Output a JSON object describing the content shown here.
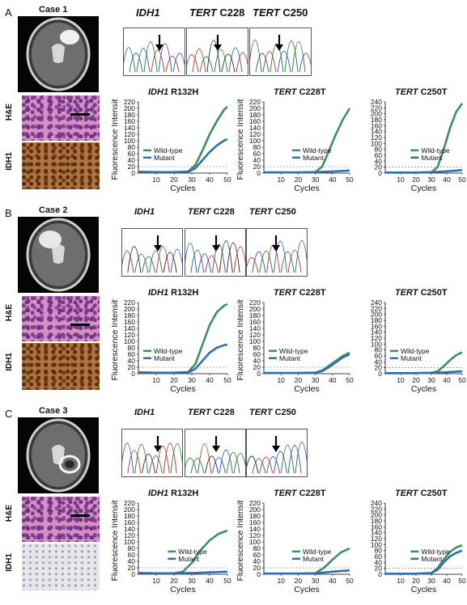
{
  "panels": [
    {
      "letter": "A",
      "case_label": "Case 1",
      "he_label": "H&E",
      "ihc_label": "IHC_LABEL_IDH1",
      "seq_titles": [
        {
          "gene": "IDH1",
          "site": ""
        },
        {
          "gene": "TERT",
          "site": "C228"
        },
        {
          "gene": "TERT",
          "site": "C250"
        }
      ]
    },
    {
      "letter": "B",
      "case_label": "Case 2",
      "he_label": "H&E",
      "ihc_label": "IHC_LABEL_IDH1",
      "seq_titles": [
        {
          "gene": "IDH1",
          "site": ""
        },
        {
          "gene": "TERT",
          "site": "C228"
        },
        {
          "gene": "TERT",
          "site": "C250"
        }
      ]
    },
    {
      "letter": "C",
      "case_label": "Case 3",
      "he_label": "H&E",
      "ihc_label": "IHC_LABEL_IDH1",
      "seq_titles": [
        {
          "gene": "IDH1",
          "site": ""
        },
        {
          "gene": "TERT",
          "site": "C228"
        },
        {
          "gene": "TERT",
          "site": "C250"
        }
      ]
    }
  ],
  "chart_data": [
    {
      "type": "line",
      "panel": "A",
      "title_gene": "IDH1",
      "title_variant": "R132H",
      "xlabel": "Cycles",
      "ylabel": "Fluorescence Intensity",
      "xticks": [
        10,
        20,
        30,
        40,
        50
      ],
      "yticks": [
        0,
        20,
        40,
        60,
        80,
        100,
        120,
        140,
        160,
        180,
        200,
        220
      ],
      "ylim": [
        0,
        220
      ],
      "xlim": [
        0,
        50
      ],
      "legend": "left",
      "series": [
        {
          "name": "Wild-type",
          "color": "#3f8f63",
          "x": [
            0,
            10,
            20,
            28,
            32,
            36,
            40,
            44,
            48,
            50
          ],
          "y": [
            4,
            3,
            3,
            5,
            25,
            70,
            120,
            160,
            195,
            205
          ]
        },
        {
          "name": "Mutant",
          "color": "#2f6fb0",
          "x": [
            0,
            10,
            20,
            28,
            32,
            36,
            40,
            44,
            48,
            50
          ],
          "y": [
            4,
            3,
            3,
            4,
            15,
            40,
            65,
            85,
            100,
            105
          ]
        }
      ]
    },
    {
      "type": "line",
      "panel": "A",
      "title_gene": "TERT",
      "title_variant": "C228T",
      "xlabel": "Cycles",
      "ylabel": "Fluorescence Intensity",
      "xticks": [
        10,
        20,
        30,
        40,
        50
      ],
      "yticks": [
        0,
        20,
        40,
        60,
        80,
        100,
        120,
        140,
        160,
        180,
        200,
        220
      ],
      "ylim": [
        0,
        220
      ],
      "xlim": [
        0,
        50
      ],
      "legend": "right",
      "series": [
        {
          "name": "Wild-type",
          "color": "#3f8f63",
          "x": [
            0,
            10,
            20,
            30,
            34,
            38,
            42,
            46,
            50
          ],
          "y": [
            2,
            2,
            2,
            3,
            20,
            70,
            120,
            165,
            200
          ]
        },
        {
          "name": "Mutant",
          "color": "#2f6fb0",
          "x": [
            0,
            10,
            20,
            30,
            40,
            50
          ],
          "y": [
            2,
            2,
            2,
            3,
            5,
            8
          ]
        }
      ]
    },
    {
      "type": "line",
      "panel": "A",
      "title_gene": "TERT",
      "title_variant": "C250T",
      "xlabel": "Cycles",
      "ylabel": "",
      "xticks": [
        10,
        20,
        30,
        40,
        50
      ],
      "yticks": [
        0,
        20,
        40,
        60,
        80,
        100,
        120,
        140,
        160,
        180,
        200,
        220,
        240
      ],
      "ylim": [
        0,
        240
      ],
      "xlim": [
        0,
        50
      ],
      "legend": "right",
      "series": [
        {
          "name": "Wild-type",
          "color": "#3f8f63",
          "x": [
            0,
            10,
            20,
            30,
            34,
            38,
            42,
            46,
            50
          ],
          "y": [
            2,
            2,
            2,
            3,
            20,
            80,
            150,
            205,
            235
          ]
        },
        {
          "name": "Mutant",
          "color": "#2f6fb0",
          "x": [
            0,
            10,
            20,
            30,
            40,
            50
          ],
          "y": [
            2,
            2,
            2,
            3,
            6,
            10
          ]
        }
      ]
    },
    {
      "type": "line",
      "panel": "B",
      "title_gene": "IDH1",
      "title_variant": "R132H",
      "xlabel": "Cycles",
      "ylabel": "Fluorescence Intensity",
      "xticks": [
        10,
        20,
        30,
        40,
        50
      ],
      "yticks": [
        0,
        20,
        40,
        60,
        80,
        100,
        120,
        140,
        160,
        180,
        200,
        220
      ],
      "ylim": [
        0,
        220
      ],
      "xlim": [
        0,
        50
      ],
      "legend": "left",
      "series": [
        {
          "name": "Wild-type",
          "color": "#3f8f63",
          "x": [
            0,
            10,
            20,
            28,
            32,
            36,
            40,
            44,
            48,
            50
          ],
          "y": [
            4,
            3,
            3,
            5,
            30,
            90,
            150,
            190,
            210,
            215
          ]
        },
        {
          "name": "Mutant",
          "color": "#2f6fb0",
          "x": [
            0,
            10,
            20,
            28,
            32,
            36,
            40,
            44,
            48,
            50
          ],
          "y": [
            4,
            3,
            3,
            4,
            15,
            40,
            65,
            80,
            88,
            90
          ]
        }
      ]
    },
    {
      "type": "line",
      "panel": "B",
      "title_gene": "TERT",
      "title_variant": "C228T",
      "xlabel": "Cycles",
      "ylabel": "Fluorescence Intensity",
      "xticks": [
        10,
        20,
        30,
        40,
        50
      ],
      "yticks": [
        0,
        20,
        40,
        60,
        80,
        100,
        120,
        140,
        160,
        180,
        200,
        220
      ],
      "ylim": [
        0,
        220
      ],
      "xlim": [
        0,
        50
      ],
      "legend": "left",
      "series": [
        {
          "name": "Wild-type",
          "color": "#3f8f63",
          "x": [
            0,
            10,
            20,
            30,
            34,
            38,
            42,
            46,
            50
          ],
          "y": [
            2,
            2,
            2,
            3,
            10,
            25,
            40,
            55,
            65
          ]
        },
        {
          "name": "Mutant",
          "color": "#2f6fb0",
          "x": [
            0,
            10,
            20,
            30,
            34,
            38,
            42,
            46,
            50
          ],
          "y": [
            2,
            2,
            2,
            3,
            8,
            20,
            35,
            50,
            60
          ]
        }
      ]
    },
    {
      "type": "line",
      "panel": "B",
      "title_gene": "TERT",
      "title_variant": "C250T",
      "xlabel": "Cycles",
      "ylabel": "",
      "xticks": [
        10,
        20,
        30,
        40,
        50
      ],
      "yticks": [
        0,
        20,
        40,
        60,
        80,
        100,
        120,
        140,
        160,
        180,
        200,
        220,
        240
      ],
      "ylim": [
        0,
        240
      ],
      "xlim": [
        0,
        50
      ],
      "legend": "left",
      "series": [
        {
          "name": "Wild-type",
          "color": "#3f8f63",
          "x": [
            0,
            10,
            20,
            30,
            34,
            38,
            42,
            46,
            50
          ],
          "y": [
            2,
            2,
            2,
            3,
            8,
            25,
            45,
            62,
            72
          ]
        },
        {
          "name": "Mutant",
          "color": "#2f6fb0",
          "x": [
            0,
            10,
            20,
            30,
            40,
            50
          ],
          "y": [
            2,
            2,
            2,
            3,
            5,
            8
          ]
        }
      ]
    },
    {
      "type": "line",
      "panel": "C",
      "title_gene": "IDH1",
      "title_variant": "R132H",
      "xlabel": "Cycles",
      "ylabel": "Fluorescence Intensity",
      "xticks": [
        10,
        20,
        30,
        40,
        50
      ],
      "yticks": [
        0,
        20,
        40,
        60,
        80,
        100,
        120,
        140,
        160,
        180,
        200,
        220
      ],
      "ylim": [
        0,
        220
      ],
      "xlim": [
        0,
        50
      ],
      "legend": "right",
      "series": [
        {
          "name": "Wild-type",
          "color": "#3f8f63",
          "x": [
            0,
            10,
            20,
            25,
            30,
            35,
            40,
            45,
            50
          ],
          "y": [
            4,
            3,
            3,
            8,
            35,
            75,
            105,
            125,
            135
          ]
        },
        {
          "name": "Mutant",
          "color": "#2f6fb0",
          "x": [
            0,
            10,
            20,
            30,
            40,
            50
          ],
          "y": [
            4,
            3,
            3,
            4,
            6,
            8
          ]
        }
      ]
    },
    {
      "type": "line",
      "panel": "C",
      "title_gene": "TERT",
      "title_variant": "C228T",
      "xlabel": "Cycles",
      "ylabel": "Fluorescence Intensity",
      "xticks": [
        10,
        20,
        30,
        40,
        50
      ],
      "yticks": [
        0,
        20,
        40,
        60,
        80,
        100,
        120,
        140,
        160,
        180,
        200,
        220
      ],
      "ylim": [
        0,
        220
      ],
      "xlim": [
        0,
        50
      ],
      "legend": "right",
      "series": [
        {
          "name": "Wild-type",
          "color": "#3f8f63",
          "x": [
            0,
            10,
            20,
            30,
            35,
            40,
            45,
            50
          ],
          "y": [
            2,
            2,
            2,
            3,
            20,
            45,
            68,
            80
          ]
        },
        {
          "name": "Mutant",
          "color": "#2f6fb0",
          "x": [
            0,
            10,
            20,
            30,
            40,
            50
          ],
          "y": [
            2,
            2,
            2,
            3,
            8,
            12
          ]
        }
      ]
    },
    {
      "type": "line",
      "panel": "C",
      "title_gene": "TERT",
      "title_variant": "C250T",
      "xlabel": "Cycles",
      "ylabel": "",
      "xticks": [
        10,
        20,
        30,
        40,
        50
      ],
      "yticks": [
        0,
        20,
        40,
        60,
        80,
        100,
        120,
        140,
        160,
        180,
        200,
        220,
        240
      ],
      "ylim": [
        0,
        240
      ],
      "xlim": [
        0,
        50
      ],
      "legend": "right",
      "series": [
        {
          "name": "Wild-type",
          "color": "#3f8f63",
          "x": [
            0,
            10,
            20,
            30,
            34,
            38,
            42,
            46,
            50
          ],
          "y": [
            2,
            2,
            2,
            4,
            20,
            50,
            75,
            90,
            98
          ]
        },
        {
          "name": "Mutant",
          "color": "#2f6fb0",
          "x": [
            0,
            10,
            20,
            30,
            34,
            38,
            42,
            46,
            50
          ],
          "y": [
            2,
            2,
            2,
            4,
            15,
            40,
            60,
            72,
            80
          ]
        }
      ]
    }
  ]
}
